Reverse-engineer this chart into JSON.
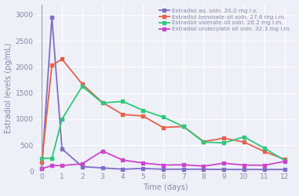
{
  "series": [
    {
      "label": "Estradiol aq. soln. 20.0 mg i.v.",
      "color": "#7B6FC8",
      "marker": "s",
      "x": [
        0,
        0.5,
        1,
        2,
        3,
        4,
        5,
        6,
        7,
        8,
        9,
        10,
        11,
        12
      ],
      "y": [
        50,
        2950,
        430,
        90,
        65,
        40,
        55,
        40,
        40,
        40,
        35,
        35,
        35,
        35
      ]
    },
    {
      "label": "Estradiol benzoate oil soln. 27.6 mg i.m.",
      "color": "#E8604A",
      "marker": "s",
      "x": [
        0,
        0.5,
        1,
        2,
        3,
        4,
        5,
        6,
        7,
        8,
        9,
        10,
        11,
        12
      ],
      "y": [
        180,
        2030,
        2150,
        1670,
        1320,
        1090,
        1060,
        840,
        860,
        570,
        635,
        560,
        380,
        230
      ]
    },
    {
      "label": "Estradiol valerate oil soln. 26.2 mg i.m.",
      "color": "#2EC87A",
      "marker": "s",
      "x": [
        0,
        0.5,
        1,
        2,
        3,
        4,
        5,
        6,
        7,
        8,
        9,
        10,
        11,
        12
      ],
      "y": [
        250,
        250,
        1000,
        1630,
        1310,
        1340,
        1170,
        1040,
        860,
        560,
        545,
        660,
        445,
        210
      ]
    },
    {
      "label": "Estradiol undecylate oil soln. 32.3 mg i.m.",
      "color": "#CC44CC",
      "marker": "s",
      "x": [
        0,
        0.5,
        1,
        2,
        3,
        4,
        5,
        6,
        7,
        8,
        9,
        10,
        11,
        12
      ],
      "y": [
        50,
        110,
        110,
        145,
        390,
        215,
        160,
        120,
        125,
        100,
        155,
        120,
        115,
        190
      ]
    }
  ],
  "xlabel": "Time (days)",
  "ylabel": "Estradiol levels (pg/mL)",
  "xlim": [
    -0.3,
    12.5
  ],
  "ylim": [
    0,
    3200
  ],
  "xticks": [
    0,
    1,
    2,
    3,
    4,
    5,
    6,
    7,
    8,
    9,
    10,
    11,
    12
  ],
  "yticks": [
    0,
    500,
    1000,
    1500,
    2000,
    2500,
    3000
  ],
  "bg_color": "#eef0f7",
  "grid_color": "#ffffff",
  "legend_fontsize": 5.2,
  "axis_label_fontsize": 7.0,
  "tick_fontsize": 6.5,
  "tick_color": "#8888aa",
  "label_color": "#8888aa",
  "line_width": 1.3,
  "marker_size": 3.2
}
